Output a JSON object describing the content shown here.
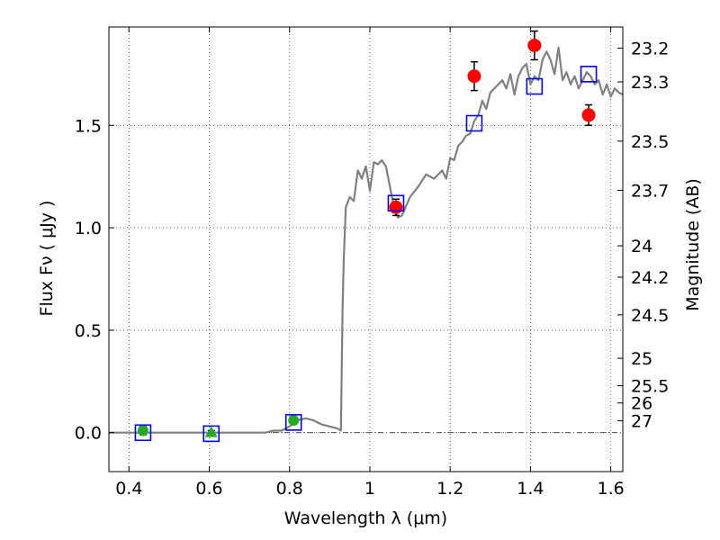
{
  "chart_data": {
    "type": "scatter",
    "title": "",
    "xlabel": "Wavelength  λ (μm)",
    "ylabel": "Flux  Fν  ( μJy )",
    "y2label": "Magnitude (AB)",
    "xlim": [
      0.35,
      1.63
    ],
    "ylim": [
      -0.19,
      1.98
    ],
    "grid": true,
    "legend": "none",
    "xticks": [
      {
        "value": 0.4,
        "label": "0.4"
      },
      {
        "value": 0.6,
        "label": "0.6"
      },
      {
        "value": 0.8,
        "label": "0.8"
      },
      {
        "value": 1.0,
        "label": "1"
      },
      {
        "value": 1.2,
        "label": "1.2"
      },
      {
        "value": 1.4,
        "label": "1.4"
      },
      {
        "value": 1.6,
        "label": "1.6"
      }
    ],
    "yticks": [
      {
        "value": 0.0,
        "label": "0.0"
      },
      {
        "value": 0.5,
        "label": "0.5"
      },
      {
        "value": 1.0,
        "label": "1.0"
      },
      {
        "value": 1.5,
        "label": "1.5"
      }
    ],
    "y2ticks": [
      {
        "flux": 1.877,
        "label": "23.2"
      },
      {
        "flux": 1.712,
        "label": "23.3"
      },
      {
        "flux": 1.423,
        "label": "23.5"
      },
      {
        "flux": 1.183,
        "label": "23.7"
      },
      {
        "flux": 0.912,
        "label": "24"
      },
      {
        "flux": 0.759,
        "label": "24.2"
      },
      {
        "flux": 0.575,
        "label": "24.5"
      },
      {
        "flux": 0.363,
        "label": "25"
      },
      {
        "flux": 0.229,
        "label": "25.5"
      },
      {
        "flux": 0.145,
        "label": "26"
      },
      {
        "flux": 0.058,
        "label": "27"
      }
    ],
    "series": [
      {
        "kind": "line",
        "color": "#808080",
        "x": [
          0.35,
          0.6,
          0.74,
          0.76,
          0.78,
          0.8,
          0.82,
          0.84,
          0.86,
          0.88,
          0.9,
          0.92,
          0.928,
          0.932,
          0.935,
          0.94,
          0.95,
          0.96,
          0.97,
          0.98,
          0.99,
          1.0,
          1.01,
          1.02,
          1.03,
          1.04,
          1.05,
          1.06,
          1.07,
          1.08,
          1.1,
          1.12,
          1.14,
          1.16,
          1.18,
          1.19,
          1.2,
          1.21,
          1.22,
          1.23,
          1.24,
          1.25,
          1.26,
          1.27,
          1.28,
          1.29,
          1.3,
          1.31,
          1.32,
          1.33,
          1.34,
          1.35,
          1.36,
          1.37,
          1.38,
          1.39,
          1.4,
          1.41,
          1.42,
          1.43,
          1.44,
          1.45,
          1.46,
          1.47,
          1.48,
          1.49,
          1.5,
          1.51,
          1.52,
          1.53,
          1.54,
          1.55,
          1.56,
          1.57,
          1.58,
          1.59,
          1.6,
          1.61,
          1.62,
          1.63
        ],
        "y": [
          0.0,
          0.0,
          0.0,
          0.01,
          0.01,
          0.03,
          0.06,
          0.07,
          0.06,
          0.04,
          0.03,
          0.02,
          0.01,
          0.6,
          0.85,
          1.1,
          1.15,
          1.13,
          1.28,
          1.24,
          1.3,
          1.18,
          1.32,
          1.31,
          1.33,
          1.3,
          1.2,
          1.1,
          1.05,
          1.06,
          1.15,
          1.2,
          1.26,
          1.24,
          1.28,
          1.24,
          1.34,
          1.33,
          1.4,
          1.42,
          1.45,
          1.46,
          1.52,
          1.55,
          1.62,
          1.58,
          1.66,
          1.68,
          1.7,
          1.72,
          1.68,
          1.75,
          1.65,
          1.74,
          1.78,
          1.8,
          1.7,
          1.74,
          1.72,
          1.82,
          1.86,
          1.82,
          1.75,
          1.88,
          1.72,
          1.76,
          1.7,
          1.74,
          1.68,
          1.72,
          1.76,
          1.74,
          1.7,
          1.72,
          1.65,
          1.7,
          1.64,
          1.68,
          1.66,
          1.65
        ]
      },
      {
        "kind": "points",
        "marker": "circle",
        "color": "#ff0000",
        "x": [
          1.065,
          1.26,
          1.41,
          1.545
        ],
        "y": [
          1.1,
          1.74,
          1.89,
          1.55
        ],
        "err": [
          0.04,
          0.07,
          0.07,
          0.05
        ]
      },
      {
        "kind": "points",
        "marker": "circle",
        "color": "#22aa22",
        "x": [
          0.435,
          0.81
        ],
        "y": [
          0.01,
          0.06
        ],
        "err": [
          0.02,
          0.01
        ]
      },
      {
        "kind": "points",
        "marker": "triangle",
        "color": "#22aa22",
        "x": [
          0.605
        ],
        "y": [
          0.0
        ],
        "err": [
          0.01
        ]
      },
      {
        "kind": "points",
        "marker": "square-open",
        "color": "#0000ff",
        "x": [
          0.435,
          0.605,
          0.81,
          1.065,
          1.26,
          1.41,
          1.545
        ],
        "y": [
          0.0,
          -0.005,
          0.05,
          1.12,
          1.51,
          1.69,
          1.75
        ]
      }
    ]
  }
}
